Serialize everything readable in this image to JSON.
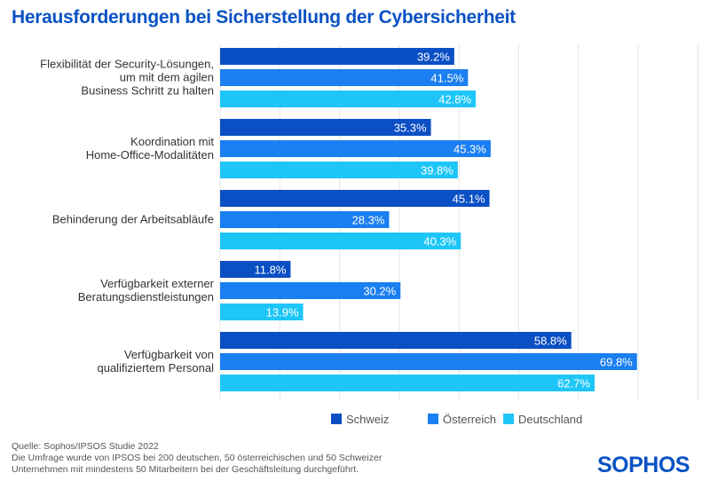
{
  "title": "Herausforderungen bei Sicherstellung der Cybersicherheit",
  "footnote": [
    "Quelle: Sophos/IPSOS Studie 2022",
    "Die Umfrage wurde von IPSOS bei 200 deutschen, 50 österreichischen und 50 Schweizer",
    "Unternehmen mit mindestens 50 Mitarbeitern bei der Geschäftsleitung durchgeführt."
  ],
  "logo": "SOPHOS",
  "chart_data": {
    "type": "bar",
    "orientation": "horizontal",
    "title": "Herausforderungen bei Sicherstellung der Cybersicherheit",
    "categories": [
      [
        "Flexibilität der Security-Lösungen,",
        "um mit dem agilen",
        "Business Schritt zu halten"
      ],
      [
        "Koordination mit",
        "Home-Office-Modalitäten"
      ],
      [
        "Behinderung der Arbeitsabläufe"
      ],
      [
        "Verfügbarkeit externer",
        "Beratungsdienstleistungen"
      ],
      [
        "Verfügbarkeit von",
        "qualifiziertem Personal"
      ]
    ],
    "series": [
      {
        "name": "Schweiz",
        "color": "#0a4fc4",
        "values": [
          39.2,
          35.3,
          45.1,
          11.8,
          58.8
        ]
      },
      {
        "name": "Österreich",
        "color": "#1a7ff0",
        "values": [
          41.5,
          45.3,
          28.3,
          30.2,
          69.8
        ]
      },
      {
        "name": "Deutschland",
        "color": "#1ec6f7",
        "values": [
          42.8,
          39.8,
          40.3,
          13.9,
          62.7
        ]
      }
    ],
    "unit": "%",
    "xlim": [
      0,
      80
    ],
    "grid": true,
    "legend": "bottom"
  }
}
